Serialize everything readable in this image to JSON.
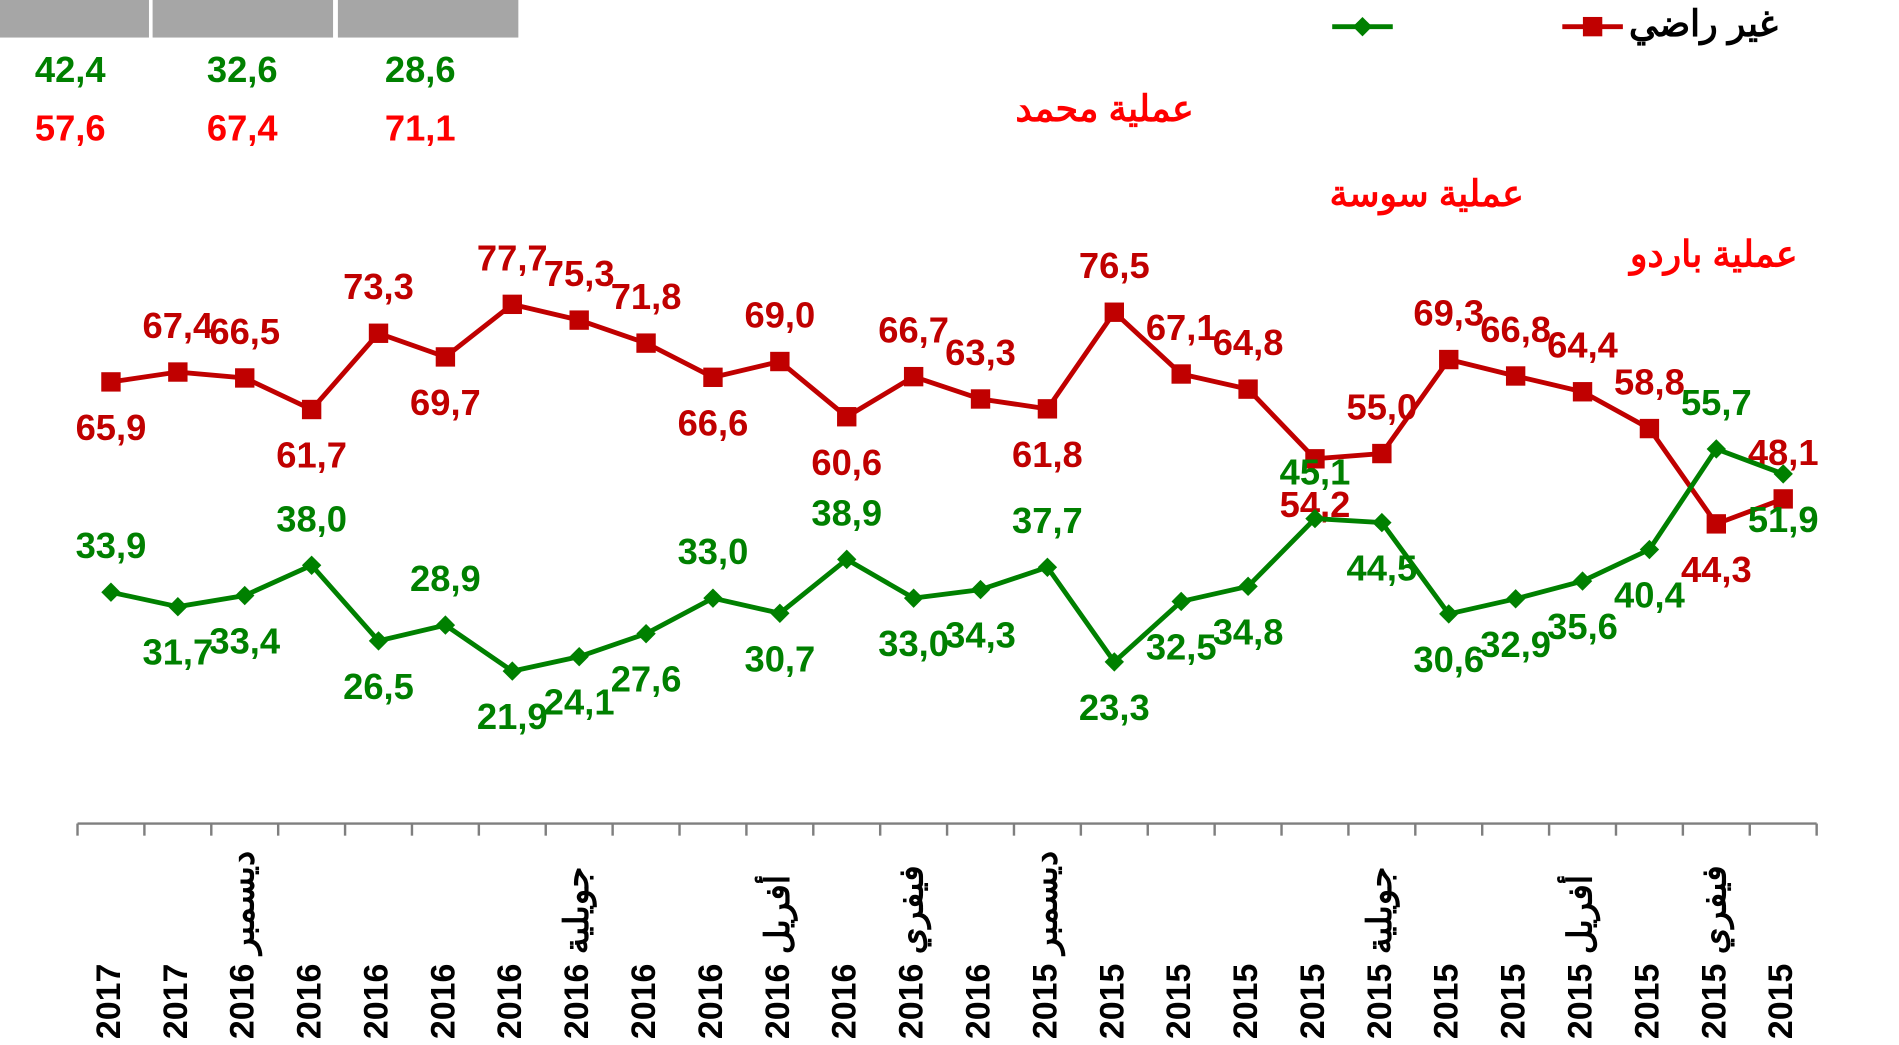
{
  "summary_table": {
    "rows": [
      [
        "42,4",
        "32,6",
        "28,6"
      ],
      [
        "57,6",
        "67,4",
        "71,1"
      ]
    ]
  },
  "chart_data": {
    "type": "line",
    "categories": [
      "2017",
      "2017",
      "ديسمبر 2016",
      "2016",
      "2016",
      "2016",
      "2016",
      "جويلية 2016",
      "2016",
      "2016",
      "أفريل 2016",
      "2016",
      "فيفري 2016",
      "2016",
      "ديسمبر 2015",
      "2015",
      "2015",
      "2015",
      "2015",
      "جويلية 2015",
      "2015",
      "2015",
      "أفريل 2015",
      "2015",
      "فيفري 2015",
      "2015"
    ],
    "series": [
      {
        "name": "غير راضي",
        "color": "#c00000",
        "marker": "square",
        "values": [
          65.9,
          67.4,
          66.5,
          61.7,
          73.3,
          69.7,
          77.7,
          75.3,
          71.8,
          66.6,
          69.0,
          60.6,
          66.7,
          63.3,
          61.8,
          76.5,
          67.1,
          64.8,
          54.2,
          55.0,
          69.3,
          66.8,
          64.4,
          58.8,
          44.3,
          48.1
        ],
        "value_labels": [
          "65,9",
          "67,4",
          "66,5",
          "61,7",
          "73,3",
          "69,7",
          "77,7",
          "75,3",
          "71,8",
          "66,6",
          "69,0",
          "60,6",
          "66,7",
          "63,3",
          "61,8",
          "76,5",
          "67,1",
          "64,8",
          "54,2",
          "55,0",
          "69,3",
          "66,8",
          "64,4",
          "58,8",
          "44,3",
          "48,1"
        ]
      },
      {
        "color": "#008000",
        "marker": "diamond",
        "values": [
          33.9,
          31.7,
          33.4,
          38.0,
          26.5,
          28.9,
          21.9,
          24.1,
          27.6,
          33.0,
          30.7,
          38.9,
          33.0,
          34.3,
          37.7,
          23.3,
          32.5,
          34.8,
          45.1,
          44.5,
          30.6,
          32.9,
          35.6,
          40.4,
          55.7,
          51.9
        ],
        "value_labels": [
          "33,9",
          "31,7",
          "33,4",
          "38,0",
          "26,5",
          "28,9",
          "21,9",
          "24,1",
          "27,6",
          "33,0",
          "30,7",
          "38,9",
          "33,0",
          "34,3",
          "37,7",
          "23,3",
          "32,5",
          "34,8",
          "45,1",
          "44,5",
          "30,6",
          "32,9",
          "35,6",
          "40,4",
          "55,7",
          "51,9"
        ]
      }
    ],
    "ylim": [
      0,
      124
    ],
    "annotations": [
      "عملية محمد",
      "عملية سوسة",
      "عملية باردو"
    ],
    "legend": "top-right"
  }
}
